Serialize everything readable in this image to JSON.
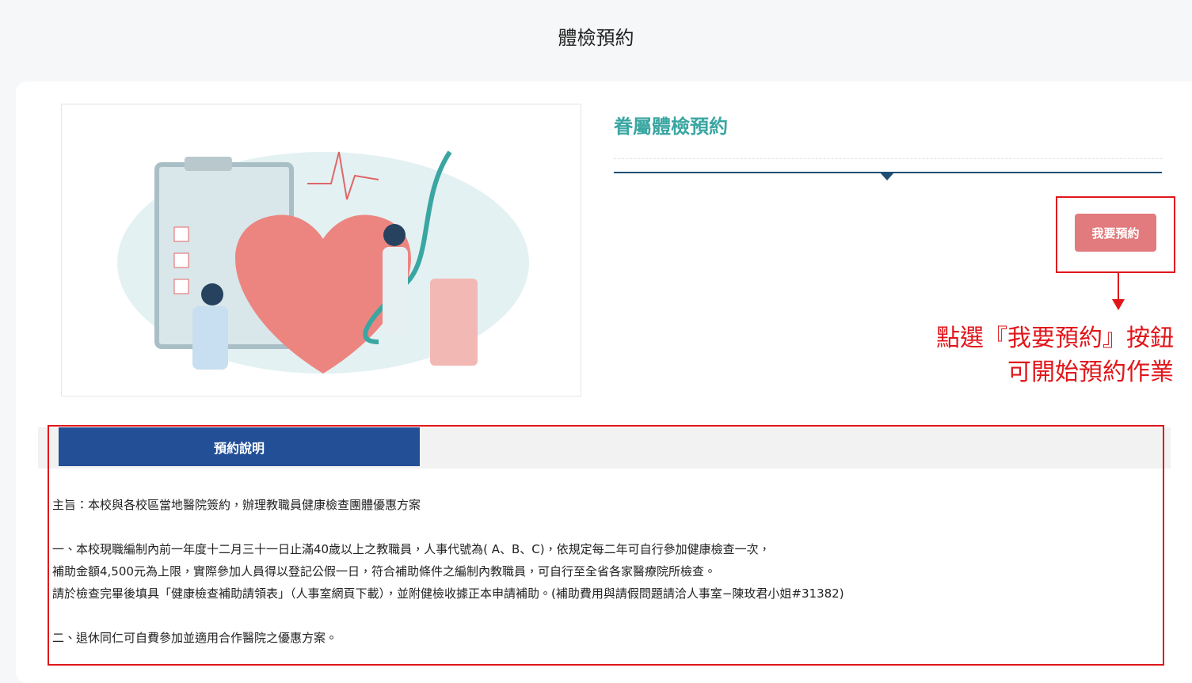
{
  "header": {
    "title": "體檢預約"
  },
  "card": {
    "title": "眷屬體檢預約",
    "button": "我要預約"
  },
  "annotation": {
    "lines": [
      "點選『我要預約』按鈕",
      "可開始預約作業"
    ]
  },
  "tabs": [
    "預約說明"
  ],
  "content": {
    "paragraphs": [
      [
        "主旨：本校與各校區當地醫院簽約，辦理教職員健康檢查團體優惠方案"
      ],
      [
        "一、本校現職編制內前一年度十二月三十一日止滿40歲以上之教職員，人事代號為( A、B、C)，依規定每二年可自行參加健康檢查一次，",
        "補助金額4,500元為上限，實際參加人員得以登記公假一日，符合補助條件之編制內教職員，可自行至全省各家醫療院所檢查。",
        "請於檢查完畢後填具「健康檢查補助請領表」（人事室網頁下載），並附健檢收據正本申請補助。(補助費用與請假問題請洽人事室−陳玫君小姐#31382)"
      ],
      [
        "二、退休同仁可自費參加並適用合作醫院之優惠方案。"
      ]
    ]
  }
}
